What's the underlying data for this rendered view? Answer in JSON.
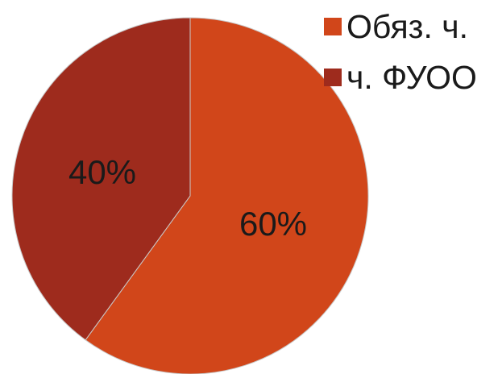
{
  "chart_data": {
    "type": "pie",
    "title": "",
    "categories": [
      "Обяз. ч.",
      "ч. ФУОО"
    ],
    "values": [
      60,
      40
    ],
    "labels": [
      "60%",
      "40%"
    ],
    "colors": [
      "#d1461a",
      "#9e2b1d"
    ],
    "legend_position": "top-right"
  }
}
